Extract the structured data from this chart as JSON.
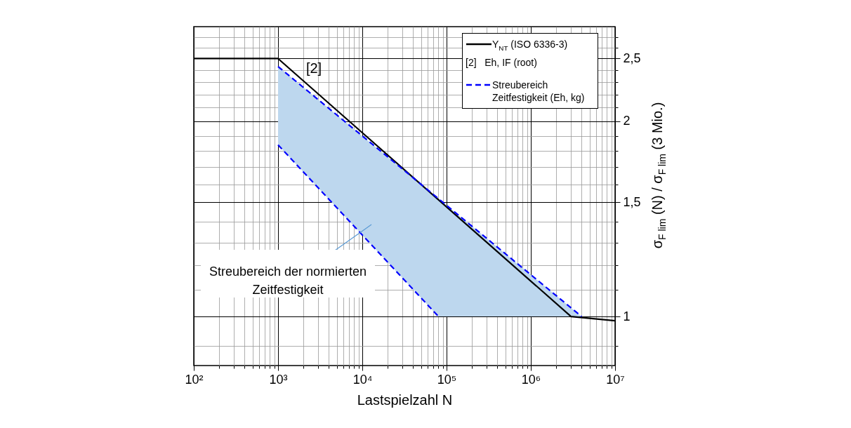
{
  "chart_data": {
    "type": "line",
    "xlabel": "Lastspielzahl N",
    "ylabel": "σ$_{F lim}$ (N) / σ$_{F lim}$ (3 Mio.)",
    "log": "xy",
    "grid": true,
    "legend": "top right",
    "xlim": [
      100,
      10000000
    ],
    "ylim": [
      0.84,
      2.8
    ],
    "xticks": [
      {
        "value": 100,
        "label": "10²"
      },
      {
        "value": 200,
        "label": null
      },
      {
        "value": 300,
        "label": null
      },
      {
        "value": 400,
        "label": null
      },
      {
        "value": 500,
        "label": null
      },
      {
        "value": 600,
        "label": null
      },
      {
        "value": 700,
        "label": null
      },
      {
        "value": 800,
        "label": null
      },
      {
        "value": 900,
        "label": null
      },
      {
        "value": 1000,
        "label": "10³"
      },
      {
        "value": 2000,
        "label": null
      },
      {
        "value": 3000,
        "label": null
      },
      {
        "value": 4000,
        "label": null
      },
      {
        "value": 5000,
        "label": null
      },
      {
        "value": 6000,
        "label": null
      },
      {
        "value": 7000,
        "label": null
      },
      {
        "value": 8000,
        "label": null
      },
      {
        "value": 9000,
        "label": null
      },
      {
        "value": 10000,
        "label": "10⁴"
      },
      {
        "value": 20000,
        "label": null
      },
      {
        "value": 30000,
        "label": null
      },
      {
        "value": 40000,
        "label": null
      },
      {
        "value": 50000,
        "label": null
      },
      {
        "value": 60000,
        "label": null
      },
      {
        "value": 70000,
        "label": null
      },
      {
        "value": 80000,
        "label": null
      },
      {
        "value": 90000,
        "label": null
      },
      {
        "value": 100000,
        "label": "10⁵"
      },
      {
        "value": 200000,
        "label": null
      },
      {
        "value": 300000,
        "label": null
      },
      {
        "value": 400000,
        "label": null
      },
      {
        "value": 500000,
        "label": null
      },
      {
        "value": 600000,
        "label": null
      },
      {
        "value": 700000,
        "label": null
      },
      {
        "value": 800000,
        "label": null
      },
      {
        "value": 900000,
        "label": null
      },
      {
        "value": 1000000,
        "label": "10⁶"
      },
      {
        "value": 2000000,
        "label": null
      },
      {
        "value": 3000000,
        "label": null
      },
      {
        "value": 4000000,
        "label": null
      },
      {
        "value": 5000000,
        "label": null
      },
      {
        "value": 6000000,
        "label": null
      },
      {
        "value": 7000000,
        "label": null
      },
      {
        "value": 8000000,
        "label": null
      },
      {
        "value": 9000000,
        "label": null
      },
      {
        "value": 10000000,
        "label": "10⁷"
      }
    ],
    "yticks": [
      {
        "value": 0.9,
        "label": null
      },
      1,
      {
        "value": 1.1,
        "label": null
      },
      {
        "value": 1.2,
        "label": null
      },
      {
        "value": 1.3,
        "label": null
      },
      {
        "value": 1.4,
        "label": null
      },
      {
        "value": 1.5,
        "label": "1,5"
      },
      {
        "value": 1.6,
        "label": null
      },
      {
        "value": 1.7,
        "label": null
      },
      {
        "value": 1.8,
        "label": null
      },
      {
        "value": 1.9,
        "label": null
      },
      2,
      {
        "value": 2.1,
        "label": null
      },
      {
        "value": 2.2,
        "label": null
      },
      {
        "value": 2.3,
        "label": null
      },
      {
        "value": 2.4,
        "label": null
      },
      {
        "value": 2.5,
        "label": "2,5"
      },
      {
        "value": 2.6,
        "label": null
      },
      {
        "value": 2.7,
        "label": null
      }
    ],
    "series": [
      {
        "name": "Y$_{NT}$ (ISO 6336-3)",
        "color": "#000000",
        "line_style": "solid",
        "x": [
          100,
          1000,
          3000000,
          10000000
        ],
        "values": [
          2.5,
          2.5,
          1.0,
          0.985
        ]
      },
      {
        "name": "Streubereich Zeitfestigkeit (Eh, kg)",
        "color": "#0000ff",
        "line_style": "dashed",
        "x": [
          1000,
          80000,
          4000000
        ],
        "values": [
          2.43,
          1.52,
          1.0
        ],
        "lower": [
          1.84,
          1.0,
          1.0
        ],
        "upper": [
          2.43,
          1.52,
          1.0
        ]
      },
      {
        "color": "#0000ff",
        "line_style": "dashed",
        "x": [
          1000,
          80000
        ],
        "values": [
          1.84,
          1.0
        ]
      }
    ],
    "annotations": [
      "[2] Eh, IF (root)",
      "[2]",
      "Streubereich der normierten\nZeitfestigkeit"
    ]
  }
}
